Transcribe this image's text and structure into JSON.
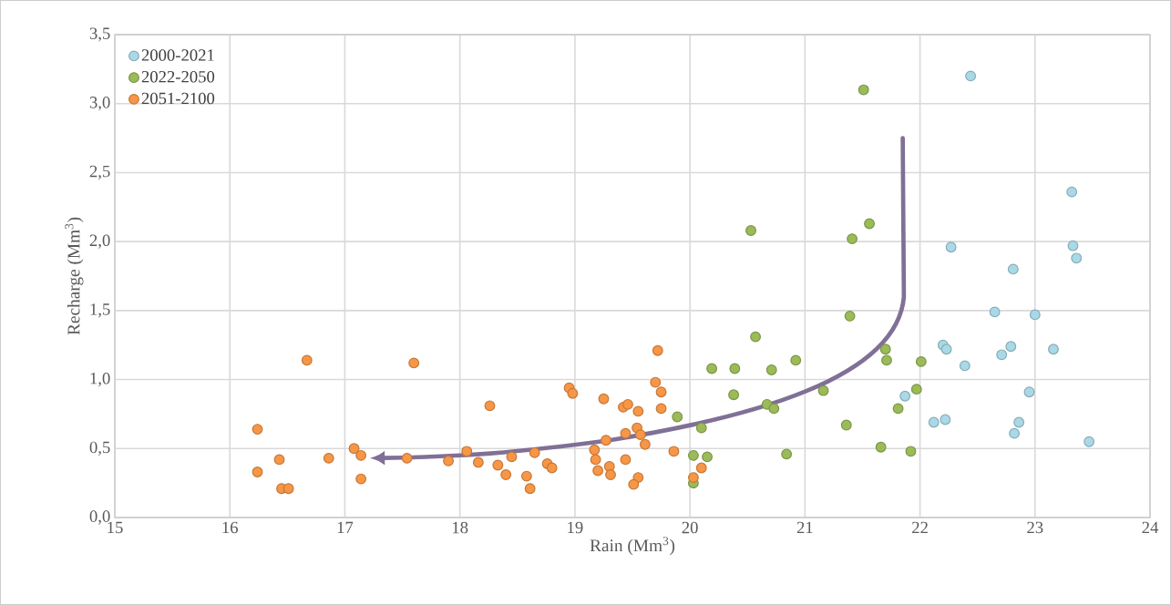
{
  "chart_data": {
    "type": "scatter",
    "xlabel": "Rain (Mm$^{3}$)",
    "ylabel": "Recharge (Mm$^{3}$)",
    "xlim": [
      15,
      24
    ],
    "xticks": [
      15,
      16,
      17,
      18,
      19,
      20,
      21,
      22,
      23,
      24
    ],
    "ylim": [
      0,
      3.5
    ],
    "yticks": [
      {
        "value": 0,
        "label": "0,0"
      },
      {
        "value": 0.5,
        "label": "0,5"
      },
      {
        "value": 1,
        "label": "1,0"
      },
      {
        "value": 1.5,
        "label": "1,5"
      },
      {
        "value": 2,
        "label": "2,0"
      },
      {
        "value": 2.5,
        "label": "2,5"
      },
      {
        "value": 3,
        "label": "3,0"
      },
      {
        "value": 3.5,
        "label": "3,5"
      }
    ],
    "grid": true,
    "legend": "top left",
    "marker": "circle",
    "series": [
      {
        "name": "2000-2021",
        "color": "#a9d8e6",
        "x": [
          22.44,
          23.32,
          22.27,
          23.33,
          23.36,
          22.81,
          22.65,
          23.0,
          22.2,
          22.23,
          22.79,
          22.71,
          23.16,
          22.39,
          21.87,
          22.95,
          22.12,
          22.22,
          22.86,
          22.82,
          23.47
        ],
        "values": [
          3.2,
          2.36,
          1.96,
          1.97,
          1.88,
          1.8,
          1.49,
          1.47,
          1.25,
          1.22,
          1.24,
          1.18,
          1.22,
          1.1,
          0.88,
          0.91,
          0.69,
          0.71,
          0.69,
          0.61,
          0.55
        ]
      },
      {
        "name": "2022-2050",
        "color": "#9bbb59",
        "x": [
          21.51,
          20.53,
          21.56,
          21.41,
          21.39,
          20.57,
          21.7,
          21.71,
          22.01,
          20.19,
          20.39,
          20.71,
          20.92,
          20.38,
          21.16,
          20.67,
          20.73,
          21.97,
          21.81,
          21.36,
          20.1,
          21.66,
          21.92,
          20.84,
          20.03,
          20.15,
          19.89,
          20.03
        ],
        "values": [
          3.1,
          2.08,
          2.13,
          2.02,
          1.46,
          1.31,
          1.22,
          1.14,
          1.13,
          1.08,
          1.08,
          1.07,
          1.14,
          0.89,
          0.92,
          0.82,
          0.79,
          0.93,
          0.79,
          0.67,
          0.65,
          0.51,
          0.48,
          0.46,
          0.45,
          0.44,
          0.73,
          0.25
        ]
      },
      {
        "name": "2051-2100",
        "color": "#f79646",
        "x": [
          16.67,
          16.24,
          16.43,
          16.24,
          16.45,
          16.51,
          16.86,
          17.08,
          17.14,
          17.14,
          17.54,
          17.6,
          17.9,
          18.06,
          18.16,
          18.26,
          18.33,
          18.4,
          18.45,
          18.65,
          18.58,
          18.61,
          18.76,
          18.8,
          18.95,
          18.98,
          19.17,
          19.18,
          19.2,
          19.25,
          19.3,
          19.31,
          19.27,
          19.42,
          19.46,
          19.55,
          19.44,
          19.54,
          19.57,
          19.61,
          19.44,
          19.55,
          19.51,
          19.72,
          19.7,
          19.75,
          19.75,
          19.86,
          20.1,
          20.03
        ],
        "values": [
          1.14,
          0.64,
          0.42,
          0.33,
          0.21,
          0.21,
          0.43,
          0.5,
          0.45,
          0.28,
          0.43,
          1.12,
          0.41,
          0.48,
          0.4,
          0.81,
          0.38,
          0.31,
          0.44,
          0.47,
          0.3,
          0.21,
          0.39,
          0.36,
          0.94,
          0.9,
          0.49,
          0.42,
          0.34,
          0.86,
          0.37,
          0.31,
          0.56,
          0.8,
          0.82,
          0.77,
          0.61,
          0.65,
          0.6,
          0.53,
          0.42,
          0.29,
          0.24,
          1.21,
          0.98,
          0.91,
          0.79,
          0.48,
          0.36,
          0.29
        ]
      }
    ]
  }
}
